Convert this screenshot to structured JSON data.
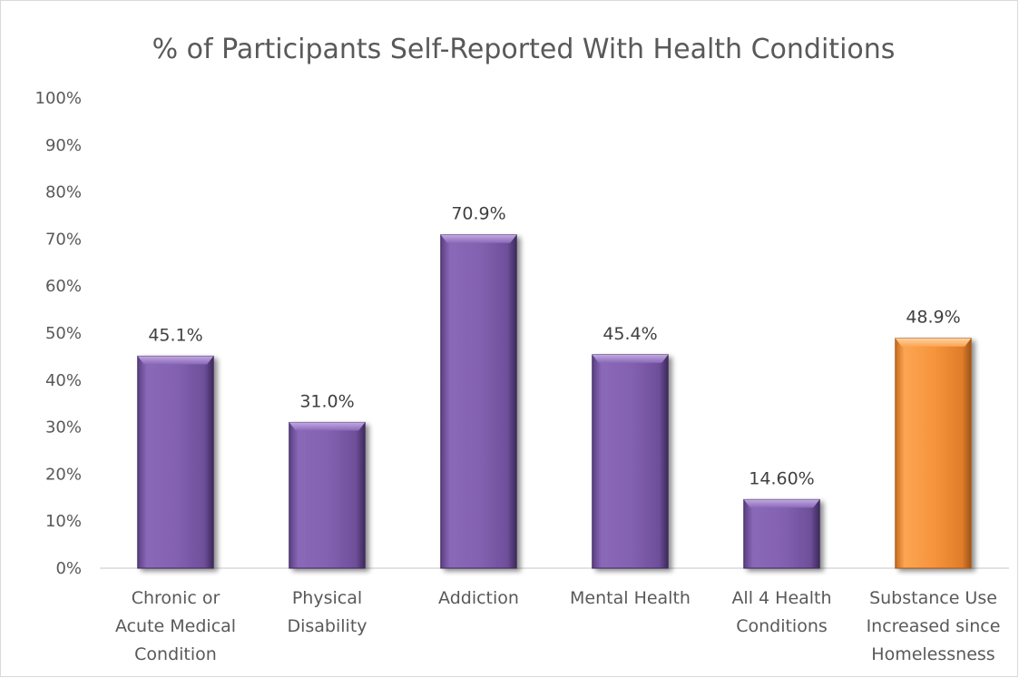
{
  "chart_data": {
    "type": "bar",
    "title": "% of Participants Self-Reported With Health Conditions",
    "xlabel": "",
    "ylabel": "",
    "ylim": [
      0,
      100
    ],
    "y_ticks": [
      "0%",
      "10%",
      "20%",
      "30%",
      "40%",
      "50%",
      "60%",
      "70%",
      "80%",
      "90%",
      "100%"
    ],
    "grid": false,
    "legend": "none",
    "categories": [
      [
        "Chronic or",
        "Acute Medical",
        "Condition"
      ],
      [
        "Physical",
        "Disability"
      ],
      [
        "Addiction"
      ],
      [
        "Mental Health"
      ],
      [
        "All 4 Health",
        "Conditions"
      ],
      [
        "Substance Use",
        "Increased since",
        "Homelessness"
      ]
    ],
    "values": [
      45.1,
      31.0,
      70.9,
      45.4,
      14.6,
      48.9
    ],
    "data_labels": [
      "45.1%",
      "31.0%",
      "70.9%",
      "45.4%",
      "14.60%",
      "48.9%"
    ],
    "bar_colors": [
      "#7E5BA9",
      "#7E5BA9",
      "#7E5BA9",
      "#7E5BA9",
      "#7E5BA9",
      "#F5923E"
    ]
  }
}
